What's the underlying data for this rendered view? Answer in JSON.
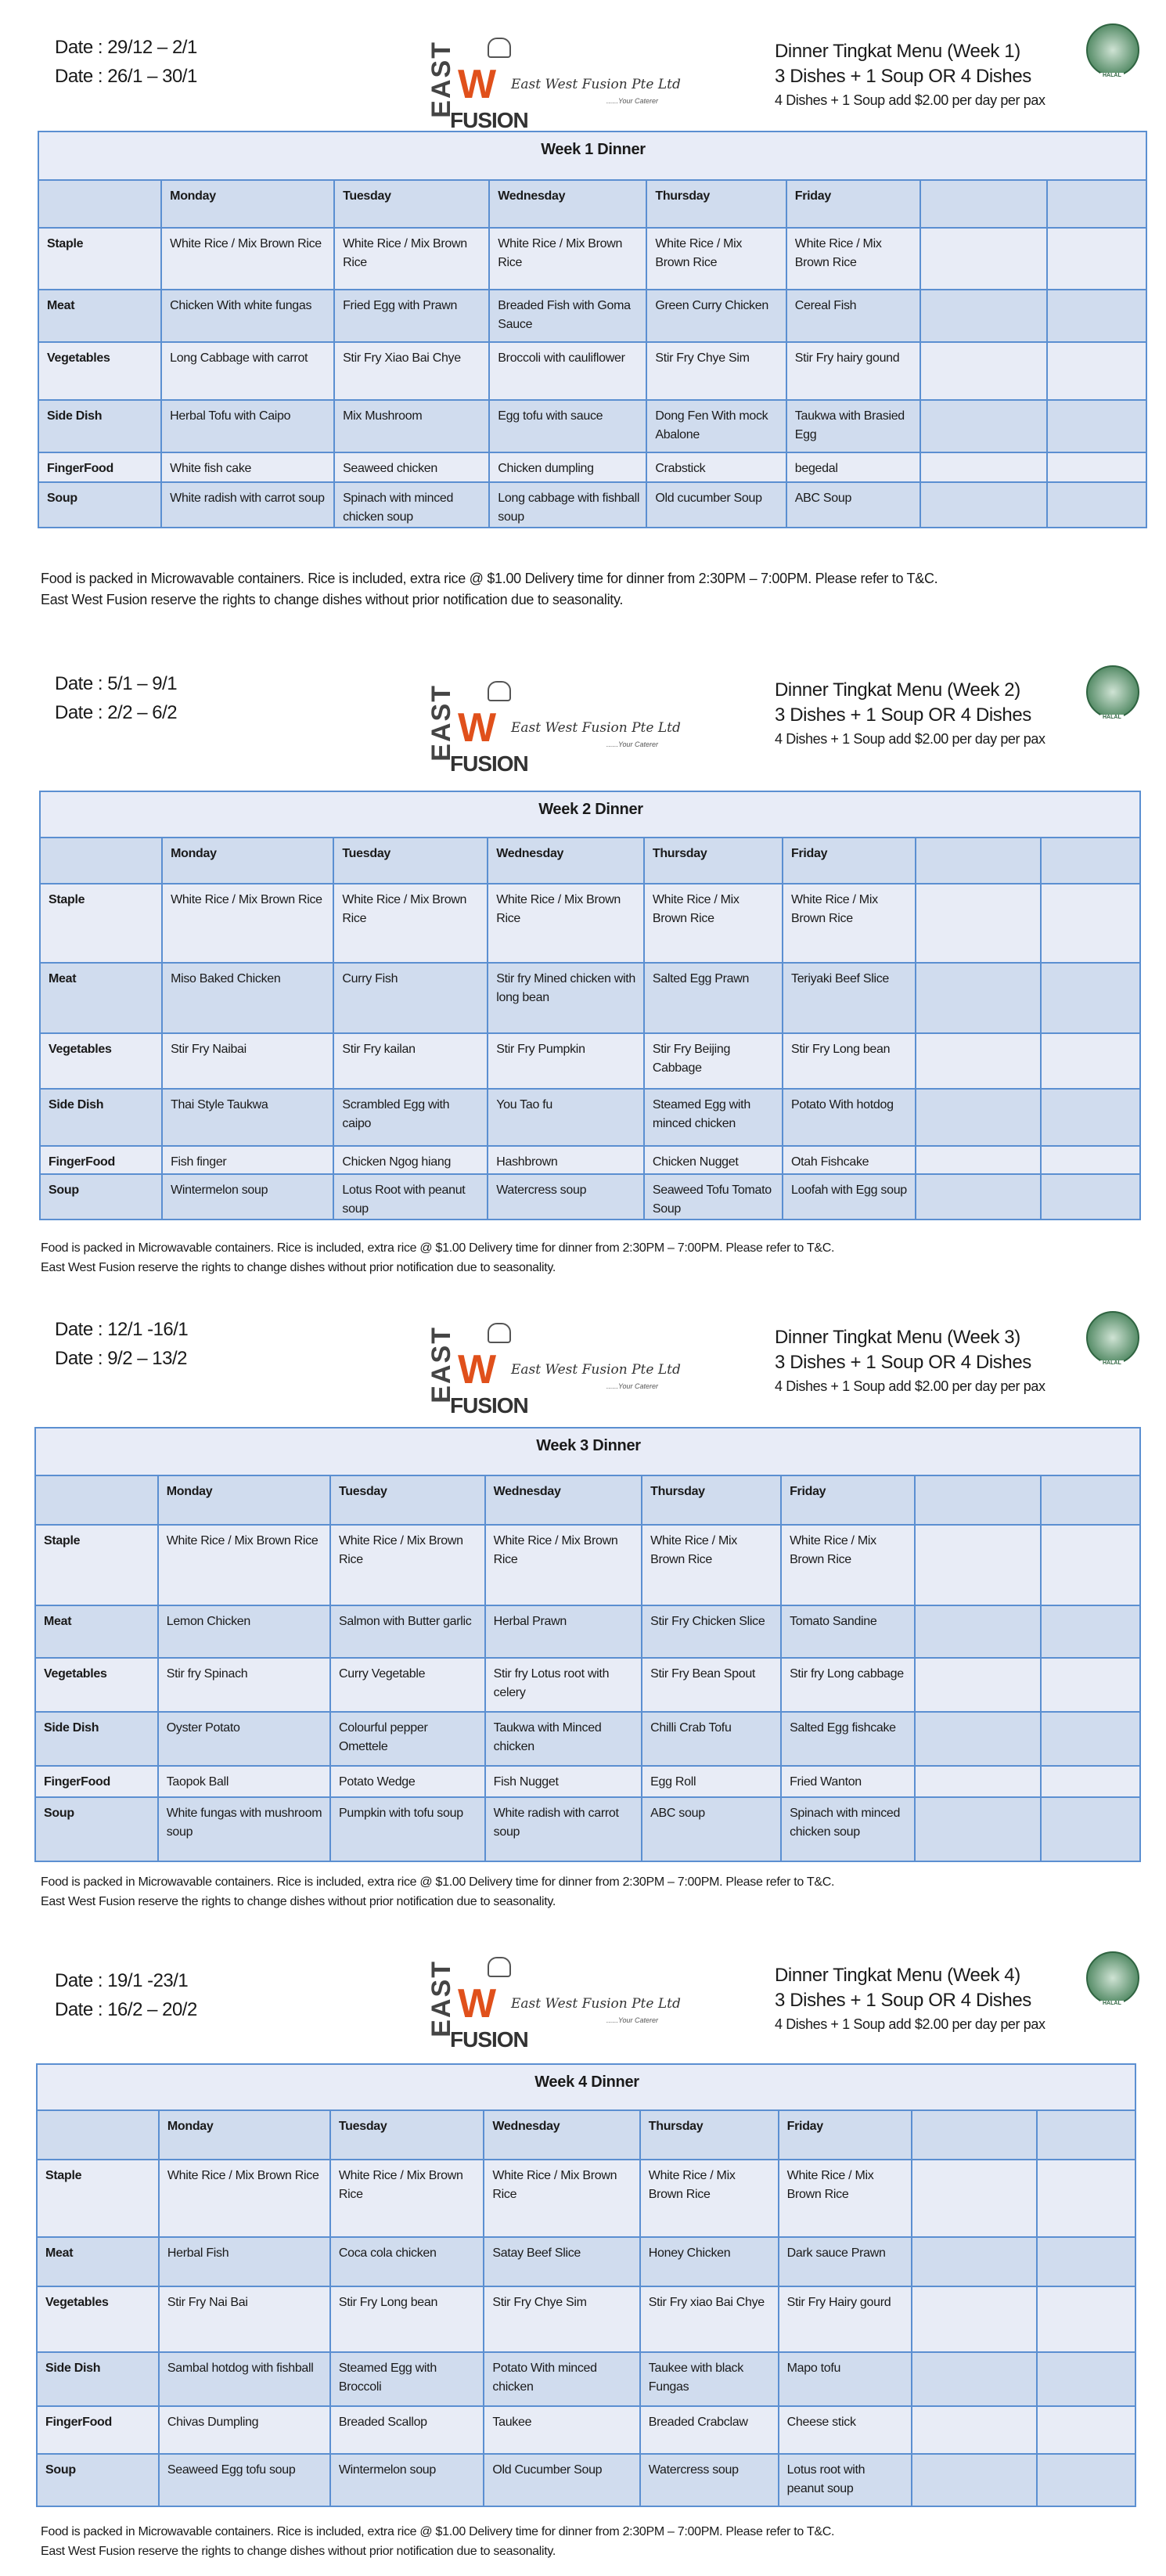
{
  "company": {
    "name": "East West Fusion Pte Ltd",
    "tagline": "Your Caterer",
    "logo_text": [
      "EAST",
      "W",
      "FUSION"
    ],
    "halal_label": "HALAL"
  },
  "colors": {
    "border": "#5b8fd1",
    "row_dark": "#d0dcee",
    "row_light": "#e8ecf6",
    "logo_accent": "#e0501b"
  },
  "row_labels": [
    "Staple",
    "Meat",
    "Vegetables",
    "Side Dish",
    "FingerFood",
    "Soup"
  ],
  "days": [
    "Monday",
    "Tuesday",
    "Wednesday",
    "Thursday",
    "Friday",
    "",
    ""
  ],
  "pricing": {
    "line1": "3 Dishes + 1 Soup OR 4 Dishes",
    "line2": "4 Dishes + 1 Soup add $2.00 per day per pax"
  },
  "footer": {
    "line1": "Food is packed in Microwavable containers. Rice is included, extra rice @ $1.00 Delivery time for dinner from 2:30PM – 7:00PM. Please refer to T&C.",
    "line2": "East West Fusion reserve the rights to change dishes without prior notification due to seasonality."
  },
  "weeks": [
    {
      "menu_title": "Dinner Tingkat Menu (Week 1)",
      "dates": [
        "Date : 29/12 – 2/1",
        "Date : 26/1 – 30/1"
      ],
      "table_title": "Week 1 Dinner",
      "rows": [
        [
          "White Rice / Mix Brown Rice",
          "White Rice / Mix Brown Rice",
          "White Rice / Mix Brown Rice",
          "White Rice / Mix Brown Rice",
          "White Rice / Mix Brown Rice"
        ],
        [
          "Chicken With white fungas",
          "Fried Egg with Prawn",
          "Breaded Fish with Goma Sauce",
          "Green Curry Chicken",
          "Cereal Fish"
        ],
        [
          "Long Cabbage with carrot",
          "Stir Fry Xiao Bai Chye",
          "Broccoli with cauliflower",
          "Stir Fry Chye Sim",
          "Stir Fry hairy gound"
        ],
        [
          "Herbal Tofu with Caipo",
          "Mix Mushroom",
          "Egg tofu with sauce",
          "Dong Fen With mock Abalone",
          "Taukwa with Brasied Egg"
        ],
        [
          "White fish cake",
          "Seaweed chicken",
          "Chicken dumpling",
          "Crabstick",
          "begedal"
        ],
        [
          "White radish with carrot soup",
          "Spinach with minced chicken soup",
          "Long cabbage with fishball soup",
          "Old cucumber Soup",
          "ABC Soup"
        ]
      ]
    },
    {
      "menu_title": "Dinner Tingkat Menu (Week 2)",
      "dates": [
        "Date : 5/1 – 9/1",
        "Date : 2/2 – 6/2"
      ],
      "table_title": "Week 2 Dinner",
      "rows": [
        [
          "White Rice / Mix Brown Rice",
          "White Rice / Mix Brown Rice",
          "White Rice / Mix Brown Rice",
          "White Rice / Mix Brown Rice",
          "White Rice / Mix Brown Rice"
        ],
        [
          "Miso Baked Chicken",
          "Curry Fish",
          "Stir fry Mined chicken with long bean",
          "Salted Egg Prawn",
          "Teriyaki Beef Slice"
        ],
        [
          "Stir Fry Naibai",
          "Stir Fry kailan",
          "Stir Fry Pumpkin",
          "Stir Fry Beijing Cabbage",
          "Stir Fry Long bean"
        ],
        [
          "Thai Style Taukwa",
          "Scrambled Egg with caipo",
          "You Tao fu",
          "Steamed Egg with minced chicken",
          "Potato With hotdog"
        ],
        [
          "Fish finger",
          "Chicken Ngog hiang",
          "Hashbrown",
          "Chicken Nugget",
          "Otah Fishcake"
        ],
        [
          "Wintermelon soup",
          "Lotus Root with peanut soup",
          "Watercress soup",
          "Seaweed Tofu Tomato Soup",
          "Loofah with Egg soup"
        ]
      ]
    },
    {
      "menu_title": "Dinner Tingkat Menu (Week 3)",
      "dates": [
        "Date : 12/1 -16/1",
        "Date : 9/2 – 13/2"
      ],
      "table_title": "Week 3 Dinner",
      "rows": [
        [
          "White Rice / Mix Brown Rice",
          "White Rice / Mix Brown Rice",
          "White Rice / Mix Brown Rice",
          "White Rice / Mix Brown Rice",
          "White Rice / Mix Brown Rice"
        ],
        [
          "Lemon Chicken",
          "Salmon with Butter garlic",
          "Herbal Prawn",
          "Stir Fry Chicken Slice",
          "Tomato Sandine"
        ],
        [
          "Stir fry Spinach",
          "Curry Vegetable",
          "Stir fry Lotus root with celery",
          "Stir Fry Bean Spout",
          "Stir fry Long cabbage"
        ],
        [
          "Oyster Potato",
          "Colourful pepper Omettele",
          "Taukwa with Minced chicken",
          "Chilli Crab Tofu",
          "Salted Egg fishcake"
        ],
        [
          "Taopok Ball",
          "Potato Wedge",
          "Fish Nugget",
          "Egg Roll",
          "Fried Wanton"
        ],
        [
          "White fungas with mushroom soup",
          "Pumpkin with tofu soup",
          "White radish with carrot soup",
          "ABC soup",
          "Spinach with minced chicken soup"
        ]
      ]
    },
    {
      "menu_title": "Dinner Tingkat Menu (Week 4)",
      "dates": [
        "Date : 19/1 -23/1",
        "Date :  16/2 – 20/2"
      ],
      "table_title": "Week 4 Dinner",
      "rows": [
        [
          "White Rice / Mix Brown Rice",
          "White Rice / Mix Brown Rice",
          "White Rice / Mix Brown Rice",
          "White Rice / Mix Brown Rice",
          "White Rice / Mix Brown Rice"
        ],
        [
          "Herbal Fish",
          "Coca cola chicken",
          "Satay Beef Slice",
          "Honey Chicken",
          "Dark sauce Prawn"
        ],
        [
          "Stir Fry Nai Bai",
          "Stir Fry Long bean",
          "Stir Fry Chye Sim",
          "Stir Fry xiao Bai Chye",
          "Stir Fry Hairy gourd"
        ],
        [
          "Sambal hotdog with fishball",
          "Steamed Egg with Broccoli",
          "Potato With minced chicken",
          "Taukee with black Fungas",
          "Mapo tofu"
        ],
        [
          "Chivas Dumpling",
          "Breaded Scallop",
          "Taukee",
          "Breaded Crabclaw",
          "Cheese stick"
        ],
        [
          "Seaweed Egg tofu soup",
          "Wintermelon soup",
          "Old Cucumber Soup",
          "Watercress soup",
          "Lotus root with peanut soup"
        ]
      ]
    }
  ]
}
